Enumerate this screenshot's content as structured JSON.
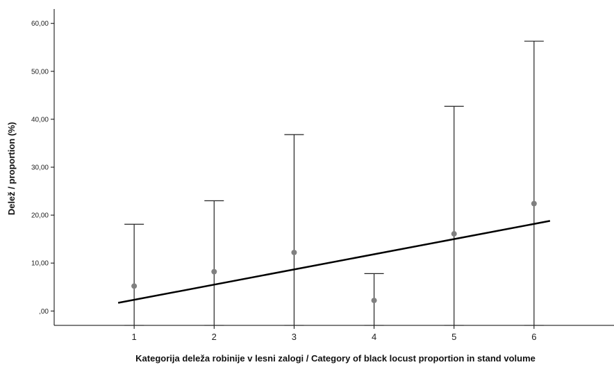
{
  "chart_data": {
    "type": "scatter",
    "title": "",
    "xlabel": "Kategorija deleža robinije v lesni zalogi / Category of black locust proportion in stand volume",
    "ylabel": "Delež / proportion (%)",
    "x_categories": [
      "1",
      "2",
      "3",
      "4",
      "5",
      "6"
    ],
    "y_ticks": [
      ",00",
      "10,00",
      "20,00",
      "30,00",
      "40,00",
      "50,00",
      "60,00"
    ],
    "y_tick_values": [
      0,
      10,
      20,
      30,
      40,
      50,
      60
    ],
    "ylim": [
      -3.0,
      63.0
    ],
    "xlim": [
      0.0,
      7.0
    ],
    "grid": false,
    "series": [
      {
        "type": "error_bar",
        "x": [
          1,
          2,
          3,
          4,
          5,
          6
        ],
        "mean": [
          5.2,
          8.2,
          12.2,
          2.2,
          16.1,
          22.4
        ],
        "lower": [
          -3.0,
          -3.0,
          -3.0,
          -3.0,
          -3.0,
          -3.0
        ],
        "upper": [
          18.1,
          23.0,
          36.8,
          7.8,
          42.7,
          56.3
        ]
      },
      {
        "type": "fit_line",
        "x": [
          0.8,
          6.2
        ],
        "y": [
          1.7,
          18.8
        ]
      }
    ],
    "colors": {
      "point": "#808080",
      "bar": "#222222",
      "line": "#000000",
      "axis": "#000000"
    }
  }
}
